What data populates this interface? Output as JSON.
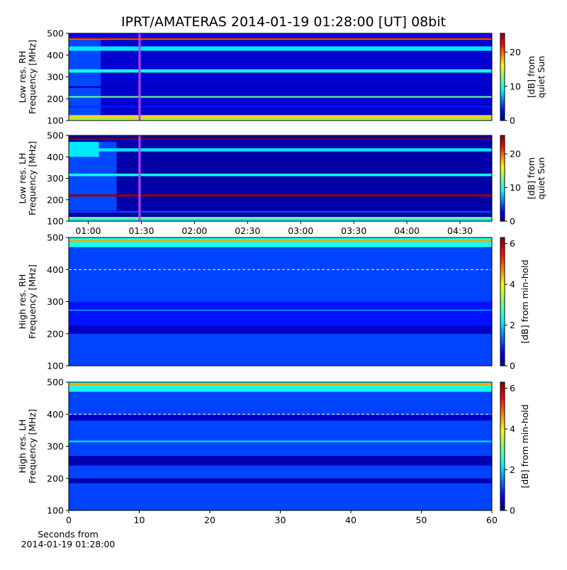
{
  "chart_data": [
    {
      "type": "heatmap",
      "title": "IPRT/AMATERAS 2014-01-19 01:28:00 [UT]   08bit",
      "ylabel": [
        "Low res. RH",
        "Frequency [MHz]"
      ],
      "ylim": [
        100,
        500
      ],
      "yticks": [
        100,
        200,
        300,
        400,
        500
      ],
      "xlim": [
        "00:49",
        "04:48"
      ],
      "clim": [
        0,
        25.5
      ],
      "cticks": [
        0,
        10,
        20
      ],
      "clabel": [
        "[dB] from",
        "quiet Sun"
      ],
      "background": 2,
      "cells": [
        {
          "x": [
            "00:49",
            "01:07"
          ],
          "y": [
            120,
            470
          ],
          "value": 5
        },
        {
          "y": [
            100,
            110
          ],
          "value": 13
        },
        {
          "y": [
            110,
            125
          ],
          "value": 17
        },
        {
          "y": [
            160,
            166
          ],
          "value": 4
        },
        {
          "y": [
            205,
            212
          ],
          "value": 12
        },
        {
          "y": [
            250,
            258
          ],
          "value": 1
        },
        {
          "y": [
            320,
            335
          ],
          "value": 10
        },
        {
          "y": [
            420,
            440
          ],
          "value": 9
        },
        {
          "y": [
            470,
            476
          ],
          "value": 20
        },
        {
          "y": [
            476,
            482
          ],
          "value": 25
        },
        {
          "y": [
            482,
            500
          ],
          "value": 3
        }
      ],
      "marker": {
        "x": "01:29",
        "color": "#c040ff"
      }
    },
    {
      "type": "heatmap",
      "ylabel": [
        "Low res. LH",
        "Frequency [MHz]"
      ],
      "ylim": [
        100,
        500
      ],
      "yticks": [
        100,
        200,
        300,
        400,
        500
      ],
      "xlim": [
        "00:49",
        "04:48"
      ],
      "xticks": [
        "01:00",
        "01:30",
        "02:00",
        "02:30",
        "03:00",
        "03:30",
        "04:00",
        "04:30"
      ],
      "clim": [
        0,
        25.5
      ],
      "cticks": [
        0,
        10,
        20
      ],
      "clabel": [
        "[dB] from",
        "quiet Sun"
      ],
      "background": 1,
      "cells": [
        {
          "x": [
            "00:49",
            "01:16"
          ],
          "y": [
            150,
            470
          ],
          "value": 5
        },
        {
          "x": [
            "00:49",
            "01:06"
          ],
          "y": [
            400,
            470
          ],
          "value": 9
        },
        {
          "y": [
            100,
            110
          ],
          "value": 9
        },
        {
          "y": [
            110,
            120
          ],
          "value": 12
        },
        {
          "y": [
            140,
            148
          ],
          "value": 5
        },
        {
          "y": [
            215,
            225
          ],
          "value": 25
        },
        {
          "y": [
            310,
            322
          ],
          "value": 10
        },
        {
          "y": [
            425,
            440
          ],
          "value": 9
        },
        {
          "y": [
            480,
            486
          ],
          "value": 25
        }
      ],
      "marker": {
        "x": "01:29",
        "color": "#c040ff"
      }
    },
    {
      "type": "heatmap",
      "ylabel": [
        "High res. RH",
        "Frequency [MHz]"
      ],
      "ylim": [
        100,
        500
      ],
      "yticks": [
        100,
        200,
        300,
        400,
        500
      ],
      "xlim": [
        0,
        60
      ],
      "clim": [
        0,
        6.3
      ],
      "cticks": [
        0,
        2,
        4,
        6
      ],
      "clabel": [
        "[dB] from min-hold"
      ],
      "background": 1.2,
      "cells": [
        {
          "y": [
            200,
            225
          ],
          "value": 0.4
        },
        {
          "y": [
            225,
            300
          ],
          "value": 0.9
        },
        {
          "y": [
            272,
            275
          ],
          "value": 2
        },
        {
          "y": [
            470,
            500
          ],
          "value": 2.5
        },
        {
          "y": [
            486,
            492
          ],
          "value": 4.5
        }
      ],
      "hline": {
        "y": 400,
        "color": "#ffffff"
      }
    },
    {
      "type": "heatmap",
      "ylabel": [
        "High res. LH",
        "Frequency [MHz]"
      ],
      "ylim": [
        100,
        500
      ],
      "yticks": [
        100,
        200,
        300,
        400,
        500
      ],
      "xlim": [
        0,
        60
      ],
      "xticks": [
        0,
        10,
        20,
        30,
        40,
        50,
        60
      ],
      "xlabel": [
        "Seconds from",
        "2014-01-19 01:28:00"
      ],
      "clim": [
        0,
        6.3
      ],
      "cticks": [
        0,
        2,
        4,
        6
      ],
      "clabel": [
        "[dB] from min-hold"
      ],
      "background": 1.2,
      "cells": [
        {
          "y": [
            185,
            200
          ],
          "value": 0.3
        },
        {
          "y": [
            240,
            270
          ],
          "value": 0.3
        },
        {
          "y": [
            380,
            398
          ],
          "value": 0.4
        },
        {
          "y": [
            312,
            318
          ],
          "value": 2
        },
        {
          "y": [
            470,
            500
          ],
          "value": 2.5
        },
        {
          "y": [
            490,
            495
          ],
          "value": 4.5
        }
      ],
      "hline": {
        "y": 400,
        "color": "#ffffff"
      }
    }
  ]
}
